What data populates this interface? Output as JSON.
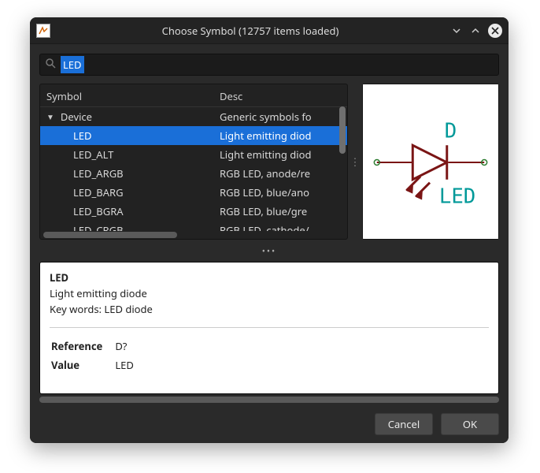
{
  "window": {
    "title": "Choose Symbol (12757 items loaded)"
  },
  "search": {
    "value": "LED",
    "placeholder": ""
  },
  "columns": {
    "symbol": "Symbol",
    "desc": "Desc"
  },
  "group": {
    "label": "Device",
    "desc": "Generic symbols fo"
  },
  "items": [
    {
      "label": "LED",
      "desc": "Light emitting diod",
      "selected": true
    },
    {
      "label": "LED_ALT",
      "desc": "Light emitting diod",
      "selected": false
    },
    {
      "label": "LED_ARGB",
      "desc": "RGB LED, anode/re",
      "selected": false
    },
    {
      "label": "LED_BARG",
      "desc": "RGB LED, blue/ano",
      "selected": false
    },
    {
      "label": "LED_BGRA",
      "desc": "RGB LED, blue/gre",
      "selected": false
    },
    {
      "label": "LED_CRGB",
      "desc": "RGB LED, cathode/",
      "selected": false
    }
  ],
  "preview": {
    "ref_text": "D",
    "value_text": "LED",
    "label_color": "#009999",
    "symbol_color": "#7a1515",
    "pin_color": "#7a1515",
    "endpoint_color": "#2e7d32",
    "background": "#ffffff"
  },
  "info": {
    "name": "LED",
    "description": "Light emitting diode",
    "keywords_label": "Key words:",
    "keywords": "LED diode",
    "fields": [
      {
        "k": "Reference",
        "v": "D?"
      },
      {
        "k": "Value",
        "v": "LED"
      }
    ]
  },
  "buttons": {
    "cancel": "Cancel",
    "ok": "OK"
  },
  "colors": {
    "selection": "#1a6fd8",
    "dialog_bg": "#2a2a2a",
    "panel_bg": "#222222",
    "text": "#e6e6e6"
  }
}
